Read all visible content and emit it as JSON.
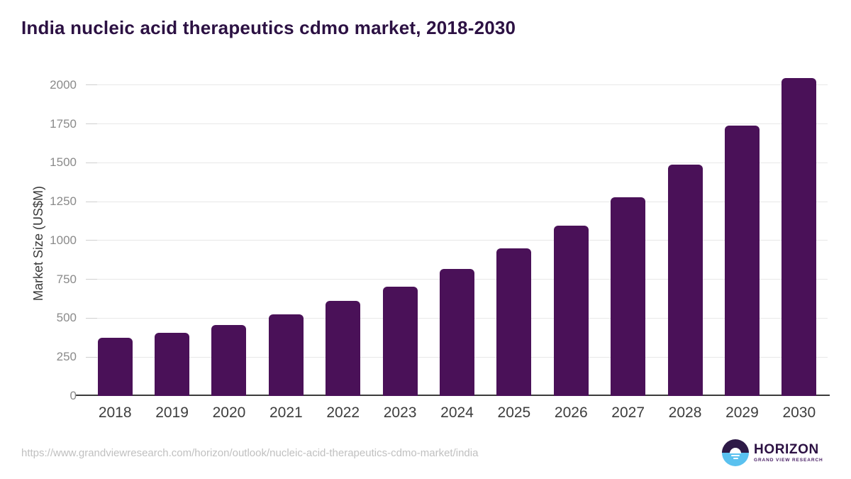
{
  "title": "India nucleic acid therapeutics cdmo market, 2018-2030",
  "source_url": "https://www.grandviewresearch.com/horizon/outlook/nucleic-acid-therapeutics-cdmo-market/india",
  "logo": {
    "name": "HORIZON",
    "subtitle": "GRAND VIEW RESEARCH"
  },
  "colors": {
    "bar": "#4a1158",
    "title": "#2c1143",
    "axis_line": "#3b3b3b",
    "gridline": "#e8e8e8",
    "y_tick_label": "#8a8a8a",
    "x_tick_label": "#3d3d3d",
    "url_text": "#c0c0c0",
    "logo_dark_purple": "#2e1a47",
    "logo_light_blue": "#5ac1ef"
  },
  "chart_data": {
    "type": "bar",
    "title": "India nucleic acid therapeutics cdmo market, 2018-2030",
    "categories": [
      "2018",
      "2019",
      "2020",
      "2021",
      "2022",
      "2023",
      "2024",
      "2025",
      "2026",
      "2027",
      "2028",
      "2029",
      "2030"
    ],
    "values": [
      375,
      406,
      458,
      527,
      610,
      702,
      816,
      950,
      1098,
      1280,
      1490,
      1740,
      2044
    ],
    "xlabel": "",
    "ylabel": "Market Size (US$M)",
    "yticks": [
      0,
      250,
      500,
      750,
      1000,
      1250,
      1500,
      1750,
      2000
    ],
    "ylim": [
      0,
      2091
    ],
    "grid": true,
    "legend": false,
    "bar_color": "#4a1158"
  }
}
